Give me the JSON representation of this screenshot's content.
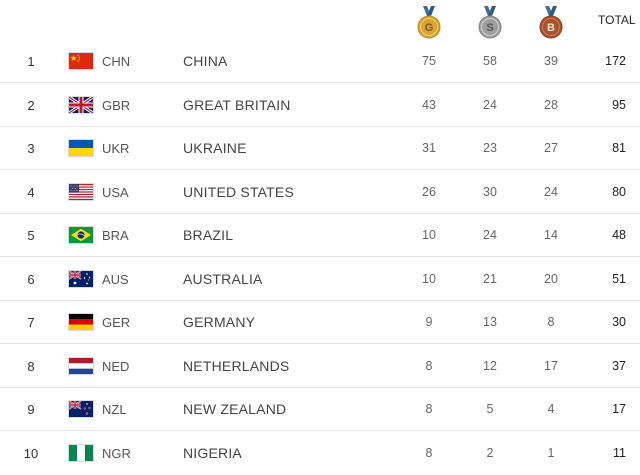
{
  "header": {
    "gold_icon_letter": "G",
    "silver_icon_letter": "S",
    "bronze_icon_letter": "B",
    "total_label": "TOTAL"
  },
  "colors": {
    "gold": "#d9a531",
    "silver": "#9e9e9e",
    "bronze": "#a9512b",
    "ribbon": "#3a6ea5"
  },
  "rows": [
    {
      "rank": "1",
      "code": "CHN",
      "country": "CHINA",
      "flag_icon": "china-flag-icon",
      "gold": "75",
      "silver": "58",
      "bronze": "39",
      "total": "172"
    },
    {
      "rank": "2",
      "code": "GBR",
      "country": "GREAT BRITAIN",
      "flag_icon": "great-britain-flag-icon",
      "gold": "43",
      "silver": "24",
      "bronze": "28",
      "total": "95"
    },
    {
      "rank": "3",
      "code": "UKR",
      "country": "UKRAINE",
      "flag_icon": "ukraine-flag-icon",
      "gold": "31",
      "silver": "23",
      "bronze": "27",
      "total": "81"
    },
    {
      "rank": "4",
      "code": "USA",
      "country": "UNITED STATES",
      "flag_icon": "usa-flag-icon",
      "gold": "26",
      "silver": "30",
      "bronze": "24",
      "total": "80"
    },
    {
      "rank": "5",
      "code": "BRA",
      "country": "BRAZIL",
      "flag_icon": "brazil-flag-icon",
      "gold": "10",
      "silver": "24",
      "bronze": "14",
      "total": "48"
    },
    {
      "rank": "6",
      "code": "AUS",
      "country": "AUSTRALIA",
      "flag_icon": "australia-flag-icon",
      "gold": "10",
      "silver": "21",
      "bronze": "20",
      "total": "51"
    },
    {
      "rank": "7",
      "code": "GER",
      "country": "GERMANY",
      "flag_icon": "germany-flag-icon",
      "gold": "9",
      "silver": "13",
      "bronze": "8",
      "total": "30"
    },
    {
      "rank": "8",
      "code": "NED",
      "country": "NETHERLANDS",
      "flag_icon": "netherlands-flag-icon",
      "gold": "8",
      "silver": "12",
      "bronze": "17",
      "total": "37"
    },
    {
      "rank": "9",
      "code": "NZL",
      "country": "NEW ZEALAND",
      "flag_icon": "new-zealand-flag-icon",
      "gold": "8",
      "silver": "5",
      "bronze": "4",
      "total": "17"
    },
    {
      "rank": "10",
      "code": "NGR",
      "country": "NIGERIA",
      "flag_icon": "nigeria-flag-icon",
      "gold": "8",
      "silver": "2",
      "bronze": "1",
      "total": "11"
    }
  ]
}
